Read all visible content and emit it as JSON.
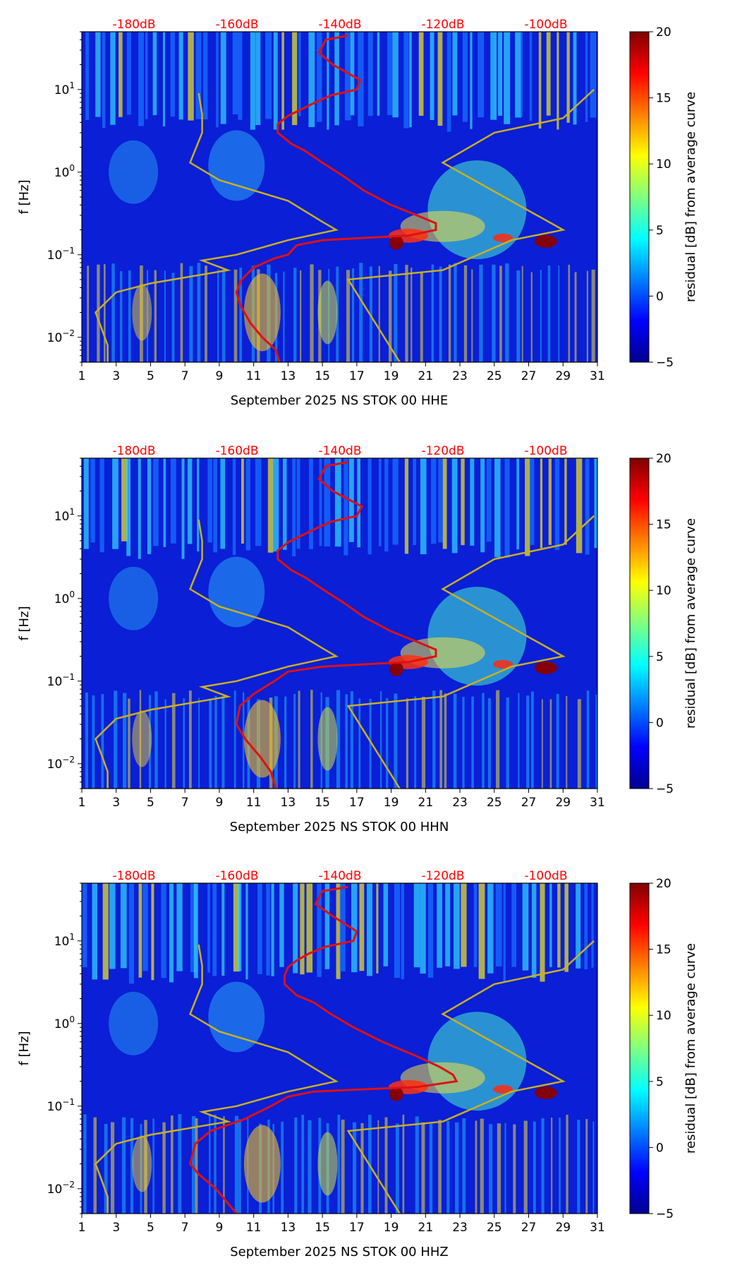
{
  "chart_data": [
    {
      "type": "heatmap",
      "title": "",
      "xlabel": "September 2025 NS STOK 00 HHE",
      "ylabel": "f [Hz]",
      "colorbar_label": "residual [dB] from average curve",
      "x_ticks": [
        "1",
        "3",
        "5",
        "7",
        "9",
        "11",
        "13",
        "15",
        "17",
        "19",
        "21",
        "23",
        "25",
        "27",
        "29",
        "31"
      ],
      "xlim": [
        1,
        31
      ],
      "y_ticks": [
        {
          "value": 0.01,
          "base": "10",
          "exp": "−2"
        },
        {
          "value": 0.1,
          "base": "10",
          "exp": "−1"
        },
        {
          "value": 1,
          "base": "10",
          "exp": "0"
        },
        {
          "value": 10,
          "base": "10",
          "exp": "1"
        }
      ],
      "ylim": [
        0.005,
        50
      ],
      "yscale": "log",
      "colorbar_ticks": [
        "20",
        "15",
        "10",
        "5",
        "0",
        "−5"
      ],
      "colorbar_range": [
        -5,
        20
      ],
      "top_axis_labels": [
        "-180dB",
        "-160dB",
        "-140dB",
        "-120dB",
        "-100dB"
      ],
      "average_curve_red": {
        "day_at_freq": [
          [
            16.5,
            45
          ],
          [
            15.2,
            40
          ],
          [
            14.8,
            28
          ],
          [
            15.6,
            20
          ],
          [
            17.2,
            13
          ],
          [
            17.0,
            10
          ],
          [
            15.5,
            8.5
          ],
          [
            14.6,
            7
          ],
          [
            13.8,
            5.8
          ],
          [
            13.0,
            4.8
          ],
          [
            12.4,
            3.8
          ],
          [
            12.4,
            3.0
          ],
          [
            13.2,
            2.2
          ],
          [
            14.0,
            1.8
          ],
          [
            15.0,
            1.3
          ],
          [
            16.2,
            0.9
          ],
          [
            17.4,
            0.6
          ],
          [
            19.0,
            0.4
          ],
          [
            20.5,
            0.3
          ],
          [
            21.6,
            0.24
          ],
          [
            21.6,
            0.2
          ],
          [
            20.0,
            0.17
          ],
          [
            17.5,
            0.16
          ],
          [
            15.0,
            0.15
          ],
          [
            13.5,
            0.13
          ],
          [
            13.0,
            0.1
          ],
          [
            12.2,
            0.09
          ],
          [
            11.0,
            0.07
          ],
          [
            10.3,
            0.05
          ],
          [
            10.0,
            0.035
          ],
          [
            10.2,
            0.025
          ],
          [
            10.8,
            0.015
          ],
          [
            11.5,
            0.01
          ],
          [
            12.3,
            0.007
          ],
          [
            12.5,
            0.005
          ]
        ]
      },
      "model_curve_gold": {
        "day_at_freq": [
          [
            7.8,
            9
          ],
          [
            8.0,
            5
          ],
          [
            8.0,
            3
          ],
          [
            7.3,
            1.3
          ],
          [
            9.0,
            0.8
          ],
          [
            13.0,
            0.45
          ],
          [
            15.0,
            0.25
          ],
          [
            15.8,
            0.2
          ],
          [
            13.0,
            0.15
          ],
          [
            10.0,
            0.1
          ],
          [
            8.0,
            0.085
          ],
          [
            9.5,
            0.065
          ],
          [
            5.0,
            0.045
          ],
          [
            3.0,
            0.035
          ],
          [
            1.8,
            0.02
          ],
          [
            2.2,
            0.012
          ],
          [
            2.5,
            0.008
          ],
          [
            2.5,
            0.005
          ]
        ],
        "segment_b": [
          [
            19.5,
            0.005
          ],
          [
            16.5,
            0.05
          ],
          [
            22.0,
            0.065
          ],
          [
            26.0,
            0.15
          ],
          [
            29.0,
            0.2
          ],
          [
            22.0,
            1.3
          ],
          [
            25.0,
            3.0
          ],
          [
            29.0,
            4.5
          ],
          [
            30.8,
            10
          ]
        ]
      }
    },
    {
      "type": "heatmap",
      "title": "",
      "xlabel": "September 2025 NS STOK 00 HHN",
      "ylabel": "f [Hz]",
      "colorbar_label": "residual [dB] from average curve",
      "x_ticks": [
        "1",
        "3",
        "5",
        "7",
        "9",
        "11",
        "13",
        "15",
        "17",
        "19",
        "21",
        "23",
        "25",
        "27",
        "29",
        "31"
      ],
      "xlim": [
        1,
        31
      ],
      "y_ticks": [
        {
          "value": 0.01,
          "base": "10",
          "exp": "−2"
        },
        {
          "value": 0.1,
          "base": "10",
          "exp": "−1"
        },
        {
          "value": 1,
          "base": "10",
          "exp": "0"
        },
        {
          "value": 10,
          "base": "10",
          "exp": "1"
        }
      ],
      "ylim": [
        0.005,
        50
      ],
      "yscale": "log",
      "colorbar_ticks": [
        "20",
        "15",
        "10",
        "5",
        "0",
        "−5"
      ],
      "colorbar_range": [
        -5,
        20
      ],
      "top_axis_labels": [
        "-180dB",
        "-160dB",
        "-140dB",
        "-120dB",
        "-100dB"
      ],
      "average_curve_red": {
        "day_at_freq": [
          [
            16.5,
            45
          ],
          [
            15.2,
            40
          ],
          [
            14.8,
            28
          ],
          [
            15.6,
            20
          ],
          [
            17.3,
            13
          ],
          [
            17.0,
            10
          ],
          [
            15.5,
            8.5
          ],
          [
            14.6,
            7
          ],
          [
            13.8,
            5.8
          ],
          [
            13.0,
            4.8
          ],
          [
            12.4,
            3.8
          ],
          [
            12.4,
            3.0
          ],
          [
            13.2,
            2.2
          ],
          [
            14.0,
            1.8
          ],
          [
            15.0,
            1.3
          ],
          [
            16.2,
            0.9
          ],
          [
            17.4,
            0.6
          ],
          [
            19.0,
            0.4
          ],
          [
            20.5,
            0.3
          ],
          [
            21.6,
            0.24
          ],
          [
            21.6,
            0.2
          ],
          [
            20.0,
            0.17
          ],
          [
            17.5,
            0.16
          ],
          [
            15.0,
            0.15
          ],
          [
            13.0,
            0.13
          ],
          [
            12.2,
            0.1
          ],
          [
            11.0,
            0.07
          ],
          [
            10.2,
            0.05
          ],
          [
            10.0,
            0.03
          ],
          [
            10.5,
            0.02
          ],
          [
            11.4,
            0.012
          ],
          [
            12.0,
            0.008
          ],
          [
            12.3,
            0.005
          ]
        ]
      },
      "model_curve_gold": {
        "day_at_freq": [
          [
            7.8,
            9
          ],
          [
            8.0,
            5
          ],
          [
            8.0,
            3
          ],
          [
            7.3,
            1.3
          ],
          [
            9.0,
            0.8
          ],
          [
            13.0,
            0.45
          ],
          [
            15.0,
            0.25
          ],
          [
            15.8,
            0.2
          ],
          [
            13.0,
            0.15
          ],
          [
            10.0,
            0.1
          ],
          [
            8.0,
            0.085
          ],
          [
            9.5,
            0.065
          ],
          [
            5.0,
            0.045
          ],
          [
            3.0,
            0.035
          ],
          [
            1.8,
            0.02
          ],
          [
            2.2,
            0.012
          ],
          [
            2.5,
            0.008
          ],
          [
            2.5,
            0.005
          ]
        ],
        "segment_b": [
          [
            19.5,
            0.005
          ],
          [
            16.5,
            0.05
          ],
          [
            22.0,
            0.065
          ],
          [
            26.0,
            0.15
          ],
          [
            29.0,
            0.2
          ],
          [
            22.0,
            1.3
          ],
          [
            25.0,
            3.0
          ],
          [
            29.0,
            4.5
          ],
          [
            30.8,
            10
          ]
        ]
      }
    },
    {
      "type": "heatmap",
      "title": "",
      "xlabel": "September 2025 NS STOK 00 HHZ",
      "ylabel": "f [Hz]",
      "colorbar_label": "residual [dB] from average curve",
      "x_ticks": [
        "1",
        "3",
        "5",
        "7",
        "9",
        "11",
        "13",
        "15",
        "17",
        "19",
        "21",
        "23",
        "25",
        "27",
        "29",
        "31"
      ],
      "xlim": [
        1,
        31
      ],
      "y_ticks": [
        {
          "value": 0.01,
          "base": "10",
          "exp": "−2"
        },
        {
          "value": 0.1,
          "base": "10",
          "exp": "−1"
        },
        {
          "value": 1,
          "base": "10",
          "exp": "0"
        },
        {
          "value": 10,
          "base": "10",
          "exp": "1"
        }
      ],
      "ylim": [
        0.005,
        50
      ],
      "yscale": "log",
      "colorbar_ticks": [
        "20",
        "15",
        "10",
        "5",
        "0",
        "−5"
      ],
      "colorbar_range": [
        -5,
        20
      ],
      "top_axis_labels": [
        "-180dB",
        "-160dB",
        "-140dB",
        "-120dB",
        "-100dB"
      ],
      "average_curve_red": {
        "day_at_freq": [
          [
            16.5,
            45
          ],
          [
            15.0,
            40
          ],
          [
            14.6,
            28
          ],
          [
            15.6,
            20
          ],
          [
            17.0,
            13
          ],
          [
            16.8,
            10
          ],
          [
            15.2,
            8.5
          ],
          [
            14.2,
            7
          ],
          [
            13.5,
            5.8
          ],
          [
            13.0,
            4.8
          ],
          [
            12.8,
            3.8
          ],
          [
            12.8,
            3.0
          ],
          [
            13.5,
            2.2
          ],
          [
            14.5,
            1.8
          ],
          [
            15.5,
            1.3
          ],
          [
            16.8,
            0.9
          ],
          [
            18.5,
            0.6
          ],
          [
            20.5,
            0.4
          ],
          [
            21.8,
            0.3
          ],
          [
            22.6,
            0.24
          ],
          [
            22.8,
            0.2
          ],
          [
            20.5,
            0.17
          ],
          [
            17.5,
            0.16
          ],
          [
            14.5,
            0.15
          ],
          [
            13.0,
            0.13
          ],
          [
            12.0,
            0.1
          ],
          [
            10.5,
            0.07
          ],
          [
            8.5,
            0.05
          ],
          [
            7.6,
            0.035
          ],
          [
            7.3,
            0.02
          ],
          [
            7.8,
            0.015
          ],
          [
            8.8,
            0.01
          ],
          [
            10.0,
            0.005
          ]
        ]
      },
      "model_curve_gold": {
        "day_at_freq": [
          [
            7.8,
            9
          ],
          [
            8.0,
            5
          ],
          [
            8.0,
            3
          ],
          [
            7.3,
            1.3
          ],
          [
            9.0,
            0.8
          ],
          [
            13.0,
            0.45
          ],
          [
            15.0,
            0.25
          ],
          [
            15.8,
            0.2
          ],
          [
            13.0,
            0.15
          ],
          [
            10.0,
            0.1
          ],
          [
            8.0,
            0.085
          ],
          [
            9.5,
            0.065
          ],
          [
            5.0,
            0.045
          ],
          [
            3.0,
            0.035
          ],
          [
            1.8,
            0.02
          ],
          [
            2.2,
            0.012
          ],
          [
            2.5,
            0.008
          ],
          [
            2.5,
            0.005
          ]
        ],
        "segment_b": [
          [
            19.5,
            0.005
          ],
          [
            16.5,
            0.05
          ],
          [
            22.0,
            0.065
          ],
          [
            26.0,
            0.15
          ],
          [
            29.0,
            0.2
          ],
          [
            22.0,
            1.3
          ],
          [
            25.0,
            3.0
          ],
          [
            29.0,
            4.5
          ],
          [
            30.8,
            10
          ]
        ]
      }
    }
  ],
  "colors": {
    "average_curve": "#e01010",
    "model_curve": "#c8b020",
    "db_labels": "#ff0000",
    "background_low": "#00008f",
    "background_high": "#800000"
  }
}
